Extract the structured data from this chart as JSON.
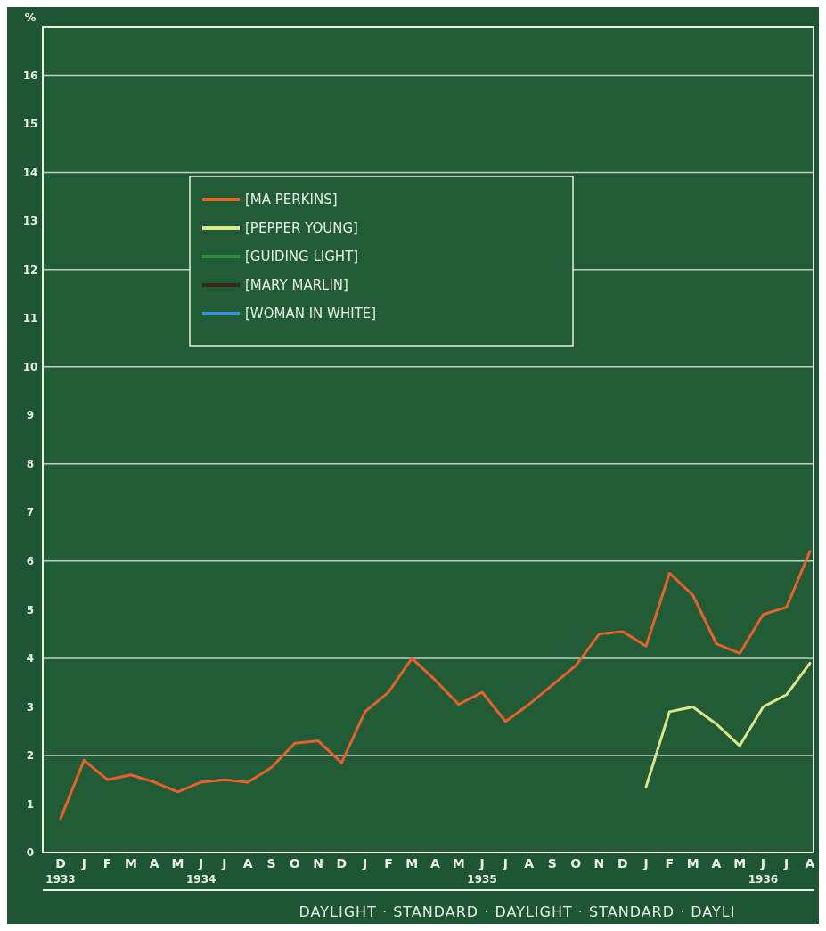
{
  "chart_data": {
    "type": "line",
    "ylabel": "%",
    "categories": [
      "D\n1933",
      "J",
      "F",
      "M",
      "A",
      "M",
      "J\n1934",
      "J",
      "A",
      "S",
      "O",
      "N",
      "D",
      "J",
      "F",
      "M",
      "A",
      "M",
      "J\n1935",
      "J",
      "A",
      "S",
      "O",
      "N",
      "D",
      "J",
      "F",
      "M",
      "A",
      "M",
      "J\n1936",
      "J",
      "A"
    ],
    "series": [
      {
        "name": "[MA PERKINS]",
        "color": "#e8602c",
        "values": [
          0.7,
          1.9,
          1.5,
          1.6,
          1.45,
          1.25,
          1.45,
          1.5,
          1.45,
          1.75,
          2.25,
          2.3,
          1.85,
          2.9,
          3.3,
          4.0,
          3.55,
          3.05,
          3.3,
          2.7,
          3.05,
          3.45,
          3.85,
          4.5,
          4.55,
          4.25,
          5.75,
          5.3,
          4.3,
          4.1,
          4.9,
          5.05,
          6.2
        ]
      },
      {
        "name": "[PEPPER YOUNG]",
        "color": "#dfe58a",
        "values": [
          null,
          null,
          null,
          null,
          null,
          null,
          null,
          null,
          null,
          null,
          null,
          null,
          null,
          null,
          null,
          null,
          null,
          null,
          null,
          null,
          null,
          null,
          null,
          null,
          null,
          1.35,
          2.9,
          3.0,
          2.65,
          2.2,
          3.0,
          3.25,
          3.9
        ]
      },
      {
        "name": "[GUIDING LIGHT]",
        "color": "#2f8a3c",
        "values": [
          null,
          null,
          null,
          null,
          null,
          null,
          null,
          null,
          null,
          null,
          null,
          null,
          null,
          null,
          null,
          null,
          null,
          null,
          null,
          null,
          null,
          null,
          null,
          null,
          null,
          null,
          null,
          null,
          null,
          null,
          null,
          null,
          null
        ]
      },
      {
        "name": "[MARY MARLIN]",
        "color": "#3a2418",
        "values": [
          null,
          null,
          null,
          null,
          null,
          null,
          null,
          null,
          null,
          null,
          null,
          null,
          null,
          null,
          null,
          null,
          null,
          null,
          null,
          null,
          null,
          null,
          null,
          null,
          null,
          null,
          null,
          null,
          null,
          null,
          null,
          null,
          null
        ]
      },
      {
        "name": "[WOMAN IN WHITE]",
        "color": "#3a8ee0",
        "values": [
          null,
          null,
          null,
          null,
          null,
          null,
          null,
          null,
          null,
          null,
          null,
          null,
          null,
          null,
          null,
          null,
          null,
          null,
          null,
          null,
          null,
          null,
          null,
          null,
          null,
          null,
          null,
          null,
          null,
          null,
          null,
          null,
          null
        ]
      }
    ],
    "ylim": [
      0,
      17
    ],
    "yticks": [
      0,
      1,
      2,
      3,
      4,
      5,
      6,
      7,
      8,
      9,
      10,
      11,
      12,
      13,
      14,
      15,
      16
    ],
    "grid": "y",
    "legend": "top left",
    "marker": "none",
    "line_style": "solid",
    "annotations": [
      "DAYLIGHT · STANDARD · DAYLIGHT · STANDARD · DAYLI"
    ]
  }
}
